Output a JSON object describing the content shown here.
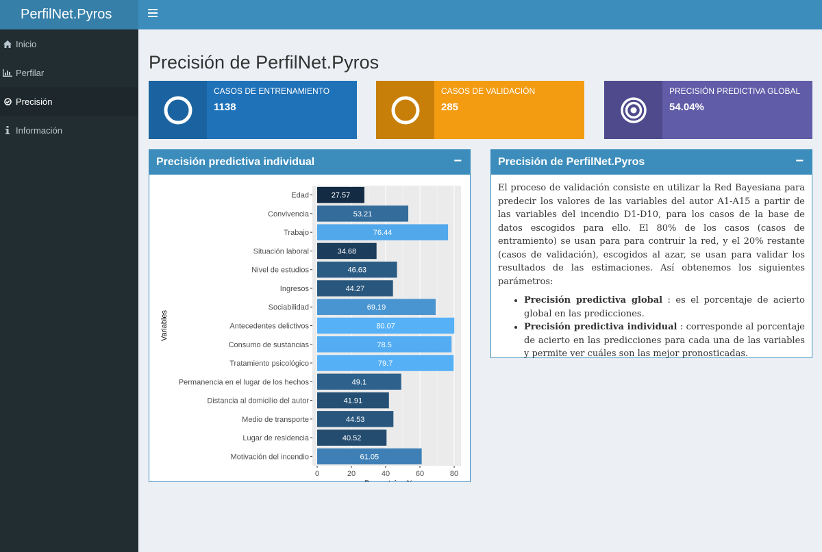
{
  "app": {
    "title": "PerfilNet.Pyros"
  },
  "sidebar": {
    "items": [
      {
        "label": "Inicio",
        "icon": "home-icon",
        "active": false
      },
      {
        "label": "Perfilar",
        "icon": "bar-chart-icon",
        "active": false
      },
      {
        "label": "Precisión",
        "icon": "check-circle-icon",
        "active": true
      },
      {
        "label": "Información",
        "icon": "info-icon",
        "active": false
      }
    ]
  },
  "page": {
    "title": "Precisión de PerfilNet.Pyros"
  },
  "info_boxes": [
    {
      "label": "CASOS DE ENTRENAMIENTO",
      "value": "1138",
      "icon": "circle-ring-icon",
      "bg": "#1f72b8",
      "icon_bg": "#1b63a0"
    },
    {
      "label": "CASOS DE VALIDACIÓN",
      "value": "285",
      "icon": "circle-ring-icon",
      "bg": "#f39c12",
      "icon_bg": "#c87f0a"
    },
    {
      "label": "PRECISIÓN PREDICTIVA GLOBAL",
      "value": "54.04%",
      "icon": "target-icon",
      "bg": "#605ca8",
      "icon_bg": "#4e4a8c"
    }
  ],
  "chart_box": {
    "title": "Precisión predictiva individual",
    "collapse": "−"
  },
  "text_box": {
    "title": "Precisión de PerfilNet.Pyros",
    "collapse": "−",
    "paragraph": "El proceso de validación consiste en utilizar la Red Bayesiana para predecir los valores de las variables del autor A1-A15 a partir de las variables del incendio D1-D10, para los casos de la base de datos escogidos para ello. El 80% de los casos (casos de entramiento) se usan para para contruir la red, y el 20% restante (casos de validación), escogidos al azar, se usan para validar los resultados de las estimaciones. Así obtenemos los siguientes parámetros:",
    "bullets": [
      {
        "term": "Precisión predictiva global",
        "desc": ": es el porcentaje de acierto global en las predicciones."
      },
      {
        "term": "Precisión predictiva individual",
        "desc": ": corresponde al porcentaje de acierto en las predicciones para cada una de las variables y permite ver cuáles son las mejor pronosticadas."
      }
    ]
  },
  "chart_data": {
    "type": "bar",
    "orientation": "horizontal",
    "title": "",
    "xlabel": "Porcentajes %",
    "ylabel": "Variables",
    "xlim": [
      0,
      84
    ],
    "xticks": [
      0,
      20,
      40,
      60,
      80
    ],
    "grid": true,
    "categories": [
      "Edad",
      "Convivencia",
      "Trabajo",
      "Situación laboral",
      "Nivel de estudios",
      "Ingresos",
      "Sociabilidad",
      "Antecedentes delictivos",
      "Consumo de sustancias",
      "Tratamiento psicológico",
      "Permanencia en el lugar de los hechos",
      "Distancia al domicilio del autor",
      "Medio de transporte",
      "Lugar de residencia",
      "Motivación del incendio"
    ],
    "values": [
      27.57,
      53.21,
      76.44,
      34.68,
      46.63,
      44.27,
      69.19,
      80.07,
      78.5,
      79.7,
      49.1,
      41.91,
      44.53,
      40.52,
      61.05
    ],
    "color_low": "#132b43",
    "color_high": "#56b1f7"
  }
}
